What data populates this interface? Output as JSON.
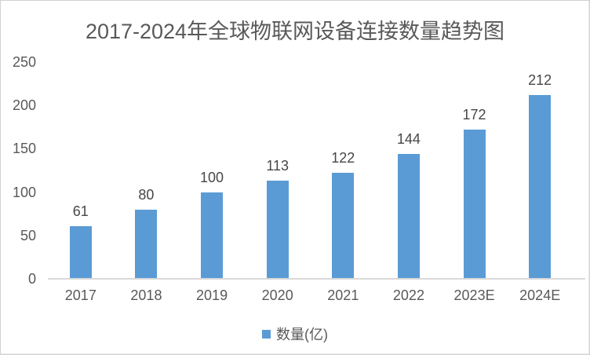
{
  "chart_data": {
    "type": "bar",
    "title": "2017-2024年全球物联网设备连接数量趋势图",
    "categories": [
      "2017",
      "2018",
      "2019",
      "2020",
      "2021",
      "2022",
      "2023E",
      "2024E"
    ],
    "values": [
      61,
      80,
      100,
      113,
      122,
      144,
      172,
      212
    ],
    "series_name": "数量(亿)",
    "xlabel": "",
    "ylabel": "",
    "ylim": [
      0,
      250
    ],
    "yticks": [
      0,
      50,
      100,
      150,
      200,
      250
    ],
    "grid": false,
    "data_labels": true,
    "legend_position": "bottom",
    "bar_color": "#5B9BD5",
    "title_color": "#595959",
    "axis_text_color": "#595959",
    "data_label_color": "#474747",
    "axis_line_color": "#D9D9D9"
  }
}
